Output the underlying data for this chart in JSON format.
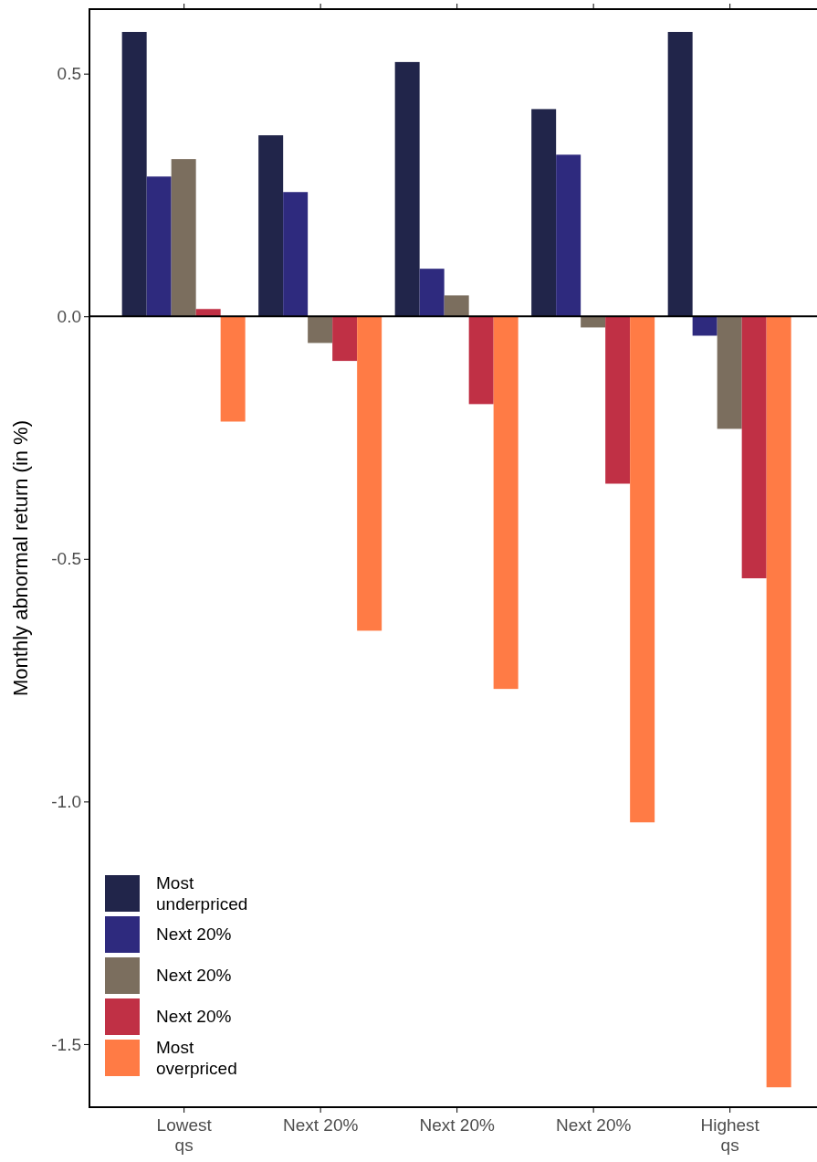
{
  "chart_data": {
    "type": "bar",
    "ylabel": "Monthly abnormal return (in %)",
    "categories": [
      "Lowest\nqs",
      "Next 20%",
      "Next 20%",
      "Next 20%",
      "Highest\nqs"
    ],
    "series": [
      {
        "name": "Most\nunderpriced",
        "color": "#21254a",
        "values": [
          0.586,
          0.373,
          0.524,
          0.427,
          0.586
        ]
      },
      {
        "name": "Next 20%",
        "color": "#2e2a7e",
        "values": [
          0.288,
          0.256,
          0.098,
          0.333,
          -0.04
        ]
      },
      {
        "name": "Next 20%",
        "color": "#7b6e5e",
        "values": [
          0.324,
          -0.055,
          0.043,
          -0.023,
          -0.232
        ]
      },
      {
        "name": "Next 20%",
        "color": "#c03045",
        "values": [
          0.015,
          -0.092,
          -0.181,
          -0.345,
          -0.54
        ]
      },
      {
        "name": "Most\noverpriced",
        "color": "#ff7b45",
        "values": [
          -0.217,
          -0.648,
          -0.768,
          -1.043,
          -1.589
        ]
      }
    ],
    "ylim": [
      -1.63,
      0.633
    ],
    "yticks": [
      -1.5,
      {
        "value": -1,
        "label": "-1.0"
      },
      -0.5,
      {
        "value": 0,
        "label": "0.0"
      },
      0.5
    ],
    "ref_lines": [
      {
        "axis": "y",
        "value": 0,
        "color": "#000000"
      }
    ],
    "grid": false,
    "legend": "bottom left"
  }
}
